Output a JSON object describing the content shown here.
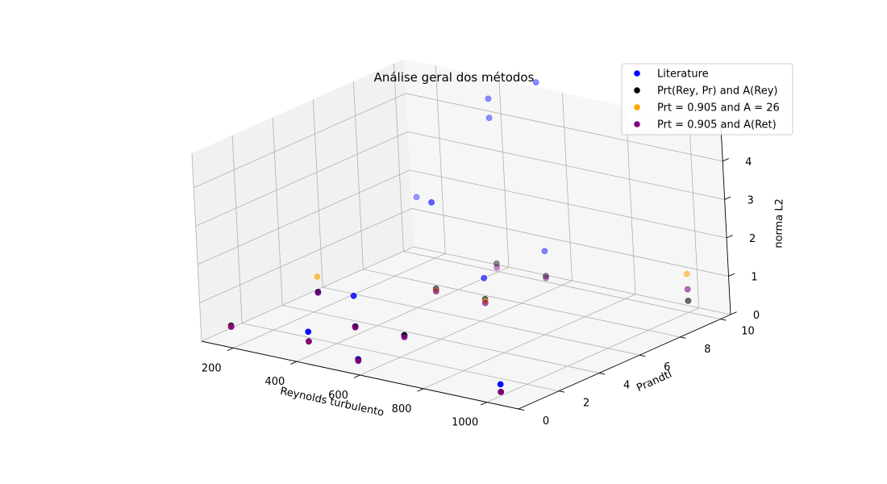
{
  "chart_data": {
    "type": "scatter",
    "projection": "3d",
    "title": "Análise geral dos métodos",
    "xlabel": "Reynolds turbulento",
    "ylabel": "Prandtl",
    "zlabel": "norma L2",
    "xlim": [
      100,
      1100
    ],
    "ylim": [
      0,
      10.5
    ],
    "zlim": [
      0,
      4.9
    ],
    "xticks": [
      "200",
      "400",
      "600",
      "800",
      "1000"
    ],
    "yticks": [
      "0",
      "2",
      "4",
      "6",
      "8",
      "10"
    ],
    "zticks": [
      "0",
      "1",
      "2",
      "3",
      "4"
    ],
    "grid": true,
    "legend_position": "top-right",
    "series": [
      {
        "name": "Literature",
        "color": "#0000ff",
        "points": [
          [
            150,
            0.71,
            0.3
          ],
          [
            150,
            10,
            1.5
          ],
          [
            395,
            0.71,
            0.6
          ],
          [
            395,
            7,
            2.5
          ],
          [
            395,
            10,
            4.0
          ],
          [
            395,
            10,
            4.5
          ],
          [
            550,
            0.71,
            0.16
          ],
          [
            550,
            10,
            0.8
          ],
          [
            550,
            7,
            0.8
          ],
          [
            550,
            10,
            5.2
          ],
          [
            1000,
            0.71,
            0.3
          ],
          [
            150,
            5,
            0.2
          ],
          [
            395,
            3,
            0.2
          ],
          [
            395,
            3,
            1.0
          ],
          [
            550,
            3,
            0.25
          ]
        ]
      },
      {
        "name": "Prt(Rey, Pr) and A(Rey)",
        "color": "#000000",
        "points": [
          [
            150,
            0.71,
            0.33
          ],
          [
            150,
            5,
            0.2
          ],
          [
            395,
            0.71,
            0.35
          ],
          [
            395,
            3,
            0.2
          ],
          [
            395,
            10,
            0.2
          ],
          [
            550,
            0.71,
            0.13
          ],
          [
            550,
            3,
            0.25
          ],
          [
            550,
            7,
            0.25
          ],
          [
            550,
            10,
            0.15
          ],
          [
            1000,
            0.71,
            0.1
          ],
          [
            1000,
            10,
            0.3
          ],
          [
            395,
            7,
            0.25
          ]
        ]
      },
      {
        "name": "Prt = 0.905 and A = 26",
        "color": "#ffa500",
        "points": [
          [
            150,
            5,
            0.6
          ],
          [
            1000,
            10,
            1.0
          ],
          [
            395,
            7,
            0.2
          ],
          [
            550,
            7,
            0.2
          ],
          [
            150,
            0.71,
            0.3
          ],
          [
            395,
            0.71,
            0.35
          ]
        ]
      },
      {
        "name": "Prt = 0.905 and A(Ret)",
        "color": "#800080",
        "points": [
          [
            150,
            0.71,
            0.3
          ],
          [
            150,
            5,
            0.18
          ],
          [
            395,
            0.71,
            0.35
          ],
          [
            395,
            3,
            0.18
          ],
          [
            395,
            7,
            0.18
          ],
          [
            550,
            0.71,
            0.12
          ],
          [
            550,
            3,
            0.2
          ],
          [
            550,
            7,
            0.15
          ],
          [
            1000,
            0.71,
            0.1
          ],
          [
            1000,
            10,
            0.6
          ],
          [
            550,
            10,
            0.1
          ],
          [
            395,
            10,
            0.1
          ]
        ]
      }
    ]
  }
}
